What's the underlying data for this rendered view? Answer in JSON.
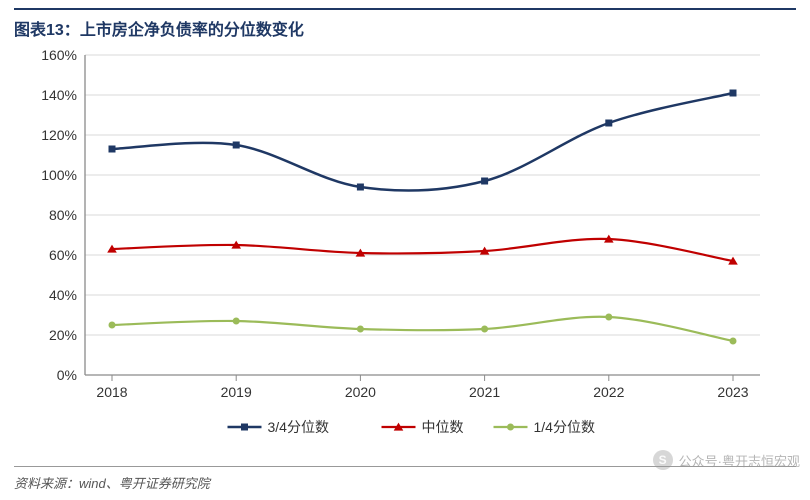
{
  "title_prefix": "图表13：",
  "title_text": "上市房企净负债率的分位数变化",
  "source_text": "资料来源：wind、粤开证券研究院",
  "watermark": {
    "label": "公众号·粤开志恒宏观",
    "icon_letter": "S"
  },
  "chart": {
    "type": "line",
    "background_color": "#ffffff",
    "plot_border_color": "#8a8a8a",
    "grid_color": "#d9d9d9",
    "tick_color": "#8a8a8a",
    "x": {
      "categories": [
        "2018",
        "2019",
        "2020",
        "2021",
        "2022",
        "2023"
      ],
      "axis_line": true,
      "fontsize": 14
    },
    "y": {
      "min": 0,
      "max": 160,
      "step": 20,
      "suffix": "%",
      "fontsize": 14,
      "grid": true
    },
    "series": [
      {
        "name": "3/4分位数",
        "color": "#1f3864",
        "marker": "square",
        "marker_size": 7,
        "line_width": 2.5,
        "values": [
          113,
          115,
          94,
          97,
          126,
          141
        ]
      },
      {
        "name": "中位数",
        "color": "#c00000",
        "marker": "triangle",
        "marker_size": 8,
        "line_width": 2.2,
        "values": [
          63,
          65,
          61,
          62,
          68,
          57
        ]
      },
      {
        "name": "1/4分位数",
        "color": "#9bbb59",
        "marker": "circle",
        "marker_size": 7,
        "line_width": 2.2,
        "values": [
          25,
          27,
          23,
          23,
          29,
          17
        ]
      }
    ],
    "legend": {
      "position": "bottom",
      "fontsize": 14
    }
  }
}
